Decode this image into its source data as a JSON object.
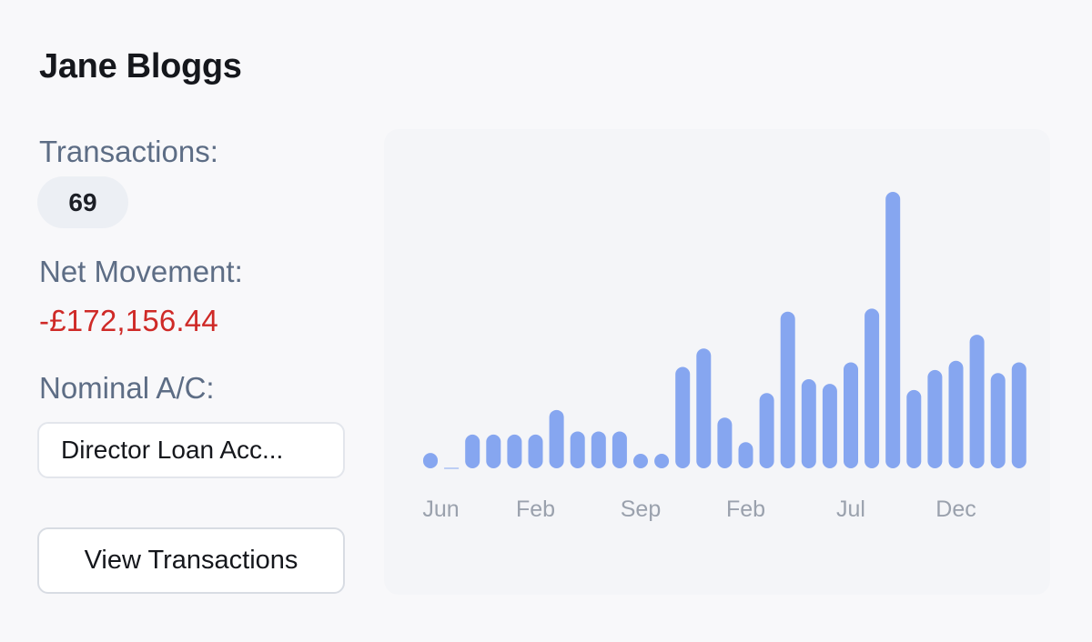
{
  "account": {
    "name": "Jane Bloggs",
    "transactions_label": "Transactions:",
    "transactions_count": "69",
    "net_movement_label": "Net Movement:",
    "net_movement_value": "-£172,156.44",
    "nominal_label": "Nominal A/C:",
    "nominal_value": "Director Loan Acc...",
    "view_button_label": "View Transactions"
  },
  "colors": {
    "bar": "#86a6f0",
    "negative": "#cf2a27",
    "muted_text": "#5d6d85",
    "axis_text": "#9aa1ad"
  },
  "chart_data": {
    "type": "bar",
    "title": "",
    "xlabel": "",
    "ylabel": "",
    "x_tick_labels": [
      "Jun",
      "Feb",
      "Sep",
      "Feb",
      "Jul",
      "Dec"
    ],
    "x_tick_positions": [
      0.5,
      5,
      10,
      15,
      20,
      25
    ],
    "values": [
      1,
      0,
      2.2,
      2.2,
      2.2,
      2.2,
      3.8,
      2.4,
      2.4,
      2.4,
      0.8,
      0.8,
      6.6,
      7.8,
      3.3,
      1.7,
      4.9,
      10.2,
      5.8,
      5.5,
      6.9,
      10.4,
      18,
      5.1,
      6.4,
      7,
      8.7,
      6.2,
      6.9
    ],
    "ylim": [
      0,
      18
    ],
    "grid": false,
    "legend": "none"
  }
}
